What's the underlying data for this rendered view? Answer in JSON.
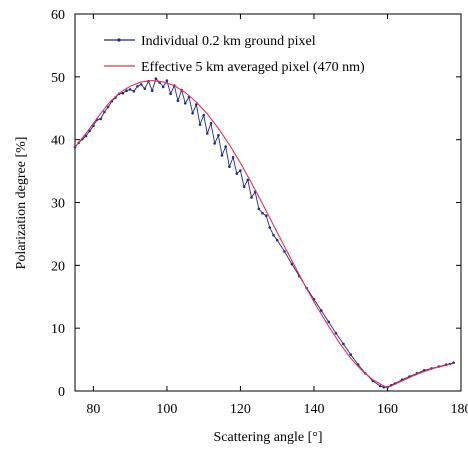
{
  "chart_data": {
    "type": "line",
    "xlabel": "Scattering angle [°]",
    "ylabel": "Polarization degree [%]",
    "xlim": [
      75,
      180
    ],
    "ylim": [
      0,
      60
    ],
    "xticks": [
      80,
      100,
      120,
      140,
      160,
      180
    ],
    "yticks": [
      0,
      10,
      20,
      30,
      40,
      50,
      60
    ],
    "xtick_labels": [
      "80",
      "100",
      "120",
      "140",
      "160",
      "180"
    ],
    "ytick_labels": [
      "0",
      "10",
      "20",
      "30",
      "40",
      "50",
      "60"
    ],
    "grid": false,
    "legend_position": "top-right",
    "series": [
      {
        "name": "Individual 0.2 km ground pixel",
        "color": "#1f2a8a",
        "style": "line-with-points",
        "x": [
          75,
          76,
          77,
          78,
          79,
          80,
          81,
          82,
          83,
          84,
          85,
          86,
          87,
          88,
          89,
          90,
          91,
          92,
          93,
          94,
          95,
          96,
          97,
          98,
          99,
          100,
          101,
          102,
          103,
          104,
          105,
          106,
          107,
          108,
          109,
          110,
          111,
          112,
          113,
          114,
          115,
          116,
          117,
          118,
          119,
          120,
          121,
          122,
          123,
          124,
          125,
          126,
          127,
          128,
          129,
          130,
          132,
          134,
          136,
          138,
          140,
          142,
          144,
          146,
          148,
          150,
          152,
          154,
          156,
          158,
          159,
          160,
          161,
          162,
          164,
          166,
          168,
          170,
          172,
          174,
          176,
          177,
          178
        ],
        "y": [
          38.8,
          39.5,
          40.1,
          40.6,
          41.4,
          42.2,
          43.2,
          43.3,
          44.4,
          45.2,
          46.1,
          46.7,
          47.3,
          47.4,
          47.8,
          48.0,
          47.7,
          48.5,
          48.8,
          48.1,
          49.3,
          47.8,
          49.7,
          49.1,
          48.4,
          49.4,
          47.3,
          48.6,
          46.2,
          47.9,
          45.8,
          46.8,
          44.2,
          45.6,
          42.4,
          43.9,
          41.0,
          42.6,
          39.4,
          40.7,
          37.5,
          38.9,
          35.7,
          37.2,
          34.6,
          35.1,
          32.5,
          33.6,
          30.8,
          31.7,
          29.0,
          28.3,
          27.9,
          26.0,
          24.8,
          24.0,
          22.2,
          20.2,
          18.3,
          16.4,
          14.6,
          12.8,
          11.0,
          9.2,
          7.5,
          5.8,
          4.2,
          2.8,
          1.6,
          0.8,
          0.6,
          0.6,
          0.9,
          1.2,
          1.8,
          2.3,
          2.8,
          3.3,
          3.6,
          3.9,
          4.2,
          4.3,
          4.5
        ]
      },
      {
        "name": "Effective 5 km averaged pixel (470 nm)",
        "color": "#e8334a",
        "style": "line",
        "x": [
          75,
          78,
          81,
          84,
          87,
          90,
          93,
          96,
          99,
          102,
          105,
          108,
          111,
          114,
          117,
          120,
          123,
          126,
          129,
          132,
          135,
          138,
          141,
          144,
          147,
          150,
          153,
          156,
          159,
          160,
          161,
          164,
          167,
          170,
          173,
          176,
          178
        ],
        "y": [
          38.8,
          41.0,
          43.4,
          45.7,
          47.4,
          48.5,
          49.2,
          49.4,
          49.2,
          48.6,
          47.5,
          46.0,
          44.1,
          41.8,
          39.2,
          36.3,
          33.1,
          29.8,
          26.4,
          23.0,
          19.6,
          16.3,
          13.2,
          10.3,
          7.6,
          5.2,
          3.3,
          1.8,
          0.8,
          0.6,
          0.8,
          1.6,
          2.4,
          3.1,
          3.7,
          4.1,
          4.4
        ]
      }
    ]
  }
}
